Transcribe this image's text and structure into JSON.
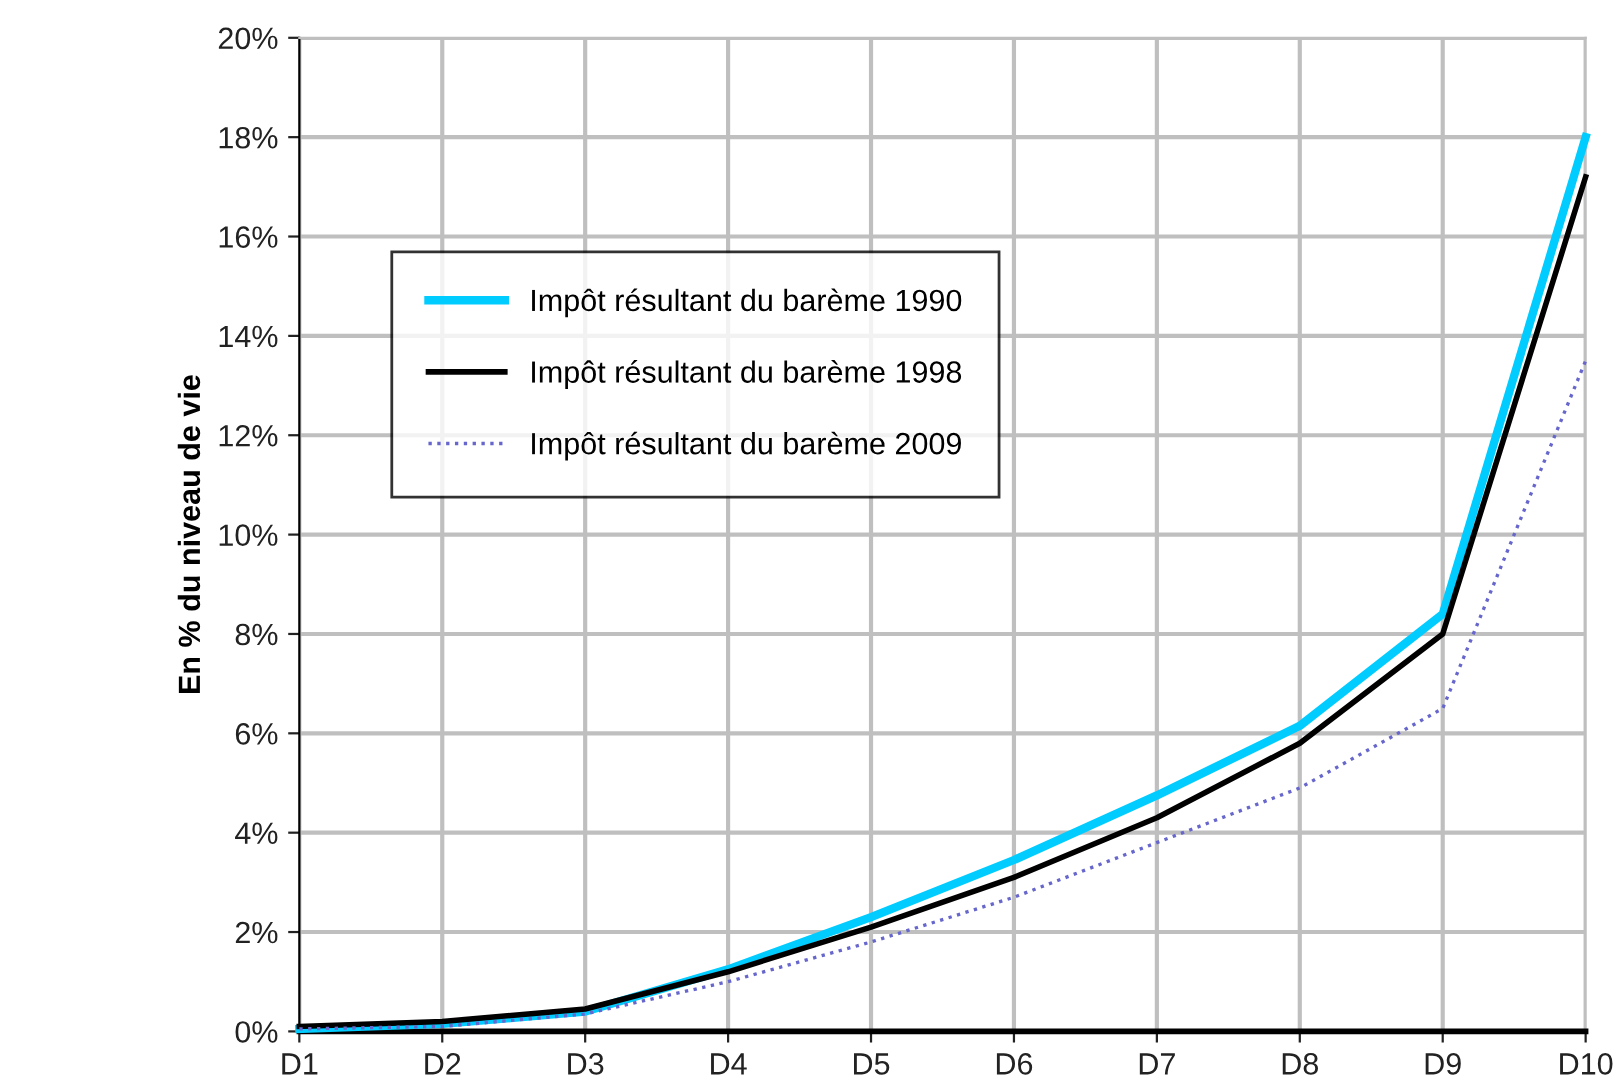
{
  "chart_data": {
    "type": "line",
    "ylabel": "En % du niveau de vie",
    "categories": [
      "D1",
      "D2",
      "D3",
      "D4",
      "D5",
      "D6",
      "D7",
      "D8",
      "D9",
      "D10"
    ],
    "series": [
      {
        "name": "Impôt résultant du barème 1990",
        "color": "#00ccff",
        "line_style": "solid",
        "values": [
          0.05,
          0.15,
          0.4,
          1.25,
          2.3,
          3.45,
          4.75,
          6.15,
          8.4,
          18.0
        ]
      },
      {
        "name": "Impôt résultant du barème 1998",
        "color": "#000000",
        "line_style": "solid",
        "values": [
          0.1,
          0.2,
          0.45,
          1.2,
          2.1,
          3.1,
          4.3,
          5.8,
          8.0,
          17.2
        ]
      },
      {
        "name": "Impôt résultant du barème 2009",
        "color": "#6666cc",
        "line_style": "dotted",
        "values": [
          0.05,
          0.1,
          0.35,
          1.0,
          1.8,
          2.7,
          3.8,
          4.9,
          6.5,
          13.5
        ]
      }
    ],
    "ylim": [
      0,
      20
    ],
    "yticks": [
      {
        "value": 0,
        "label": "0%"
      },
      {
        "value": 2,
        "label": "2%"
      },
      {
        "value": 4,
        "label": "4%"
      },
      {
        "value": 6,
        "label": "6%"
      },
      {
        "value": 8,
        "label": "8%"
      },
      {
        "value": 10,
        "label": "10%"
      },
      {
        "value": 12,
        "label": "12%"
      },
      {
        "value": 14,
        "label": "14%"
      },
      {
        "value": 16,
        "label": "16%"
      },
      {
        "value": 18,
        "label": "18%"
      },
      {
        "value": 20,
        "label": "20%"
      }
    ],
    "grid": true,
    "legend": "top left",
    "marker": "none"
  }
}
